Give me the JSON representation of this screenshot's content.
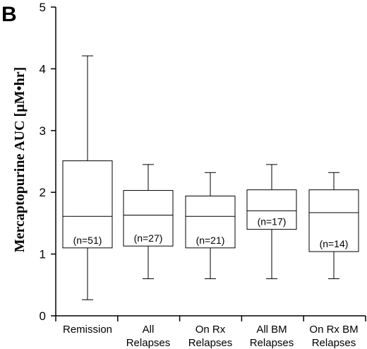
{
  "panel_label": "B",
  "chart_data": {
    "type": "box",
    "ylabel": "Mercaptopurine AUC [µM•hr]",
    "ylim": [
      0,
      5
    ],
    "yticks": [
      0,
      1,
      2,
      3,
      4,
      5
    ],
    "categories": [
      {
        "line1": "Remission",
        "line2": ""
      },
      {
        "line1": "All",
        "line2": "Relapses"
      },
      {
        "line1": "On Rx",
        "line2": "Relapses"
      },
      {
        "line1": "All BM",
        "line2": "Relapses"
      },
      {
        "line1": "On Rx BM",
        "line2": "Relapses"
      }
    ],
    "boxes": [
      {
        "min": 0.26,
        "q1": 1.1,
        "median": 1.61,
        "q3": 2.51,
        "max": 4.21,
        "n_label": "(n=51)"
      },
      {
        "min": 0.6,
        "q1": 1.13,
        "median": 1.63,
        "q3": 2.03,
        "max": 2.45,
        "n_label": "(n=27)"
      },
      {
        "min": 0.6,
        "q1": 1.1,
        "median": 1.61,
        "q3": 1.94,
        "max": 2.32,
        "n_label": "(n=21)"
      },
      {
        "min": 0.6,
        "q1": 1.4,
        "median": 1.7,
        "q3": 2.04,
        "max": 2.45,
        "n_label": "(n=17)"
      },
      {
        "min": 0.6,
        "q1": 1.04,
        "median": 1.67,
        "q3": 2.04,
        "max": 2.32,
        "n_label": "(n=14)"
      }
    ]
  }
}
